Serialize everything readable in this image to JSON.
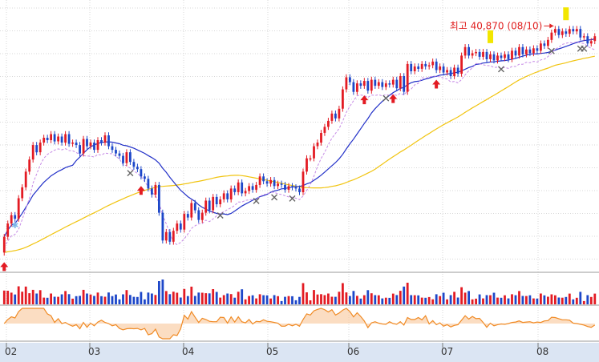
{
  "chart_data": {
    "type": "candlestick",
    "x_tick_labels": [
      "02",
      "03",
      "04",
      "05",
      "06",
      "07",
      "08"
    ],
    "high_annotation": {
      "label": "최고 40,870 (08/10)",
      "value": 40870
    },
    "ylim": [
      20500,
      42500
    ],
    "grid": true,
    "colors": {
      "up": "#e31b23",
      "down": "#1d47c9",
      "ma_short": "#2230c8",
      "ma_long": "#f1c40f",
      "ma_dashed": "#c68ae6",
      "oscillator": "#f08a24",
      "marker_up": "#e31b23",
      "marker_x": "#666666",
      "marker_yellow": "#f2e600",
      "axis_bg": "#dbe5f3"
    },
    "candles": [
      [
        22000,
        23300
      ],
      [
        23300,
        24400
      ],
      [
        24400,
        25100
      ],
      [
        25100,
        24800
      ],
      [
        24800,
        26500
      ],
      [
        26500,
        27400
      ],
      [
        27400,
        28700
      ],
      [
        28700,
        29700
      ],
      [
        29700,
        30900
      ],
      [
        30900,
        30300
      ],
      [
        30300,
        31100
      ],
      [
        31100,
        31500
      ],
      [
        31500,
        31300
      ],
      [
        31300,
        31800
      ],
      [
        31800,
        31200
      ],
      [
        31200,
        31600
      ],
      [
        31600,
        31100
      ],
      [
        31100,
        31800
      ],
      [
        31800,
        31000
      ],
      [
        31000,
        31100
      ],
      [
        31100,
        30900
      ],
      [
        30900,
        30200
      ],
      [
        30200,
        31400
      ],
      [
        31400,
        30800
      ],
      [
        30800,
        31100
      ],
      [
        31100,
        30500
      ],
      [
        30500,
        31300
      ],
      [
        31300,
        31100
      ],
      [
        31100,
        31700
      ],
      [
        31700,
        30800
      ],
      [
        30800,
        30500
      ],
      [
        30500,
        30200
      ],
      [
        30200,
        30000
      ],
      [
        30000,
        29400
      ],
      [
        29400,
        30300
      ],
      [
        30300,
        29500
      ],
      [
        29500,
        29100
      ],
      [
        29100,
        28900
      ],
      [
        28900,
        28300
      ],
      [
        28300,
        28100
      ],
      [
        28100,
        27300
      ],
      [
        27300,
        26800
      ],
      [
        26800,
        27600
      ],
      [
        27600,
        25300
      ],
      [
        25300,
        23000
      ],
      [
        23000,
        23700
      ],
      [
        23700,
        22900
      ],
      [
        22900,
        23800
      ],
      [
        23800,
        24400
      ],
      [
        24400,
        23900
      ],
      [
        23900,
        25200
      ],
      [
        25200,
        24900
      ],
      [
        24900,
        26100
      ],
      [
        26100,
        25500
      ],
      [
        25500,
        24700
      ],
      [
        24700,
        25300
      ],
      [
        25300,
        26300
      ],
      [
        26300,
        25500
      ],
      [
        25500,
        26600
      ],
      [
        26600,
        26000
      ],
      [
        26000,
        26400
      ],
      [
        26400,
        26900
      ],
      [
        26900,
        26400
      ],
      [
        26400,
        27300
      ],
      [
        27300,
        27000
      ],
      [
        27000,
        27800
      ],
      [
        27800,
        26900
      ],
      [
        26900,
        27100
      ],
      [
        27100,
        27500
      ],
      [
        27500,
        27200
      ],
      [
        27200,
        27600
      ],
      [
        27600,
        28300
      ],
      [
        28300,
        27900
      ],
      [
        27900,
        27700
      ],
      [
        27700,
        28000
      ],
      [
        28000,
        27500
      ],
      [
        27500,
        27700
      ],
      [
        27700,
        27600
      ],
      [
        27600,
        27200
      ],
      [
        27200,
        27500
      ],
      [
        27500,
        27400
      ],
      [
        27400,
        27300
      ],
      [
        27300,
        27000
      ],
      [
        27000,
        28700
      ],
      [
        28700,
        29800
      ],
      [
        29800,
        29800
      ],
      [
        29800,
        30800
      ],
      [
        30800,
        31100
      ],
      [
        31100,
        31900
      ],
      [
        31900,
        32400
      ],
      [
        32400,
        32900
      ],
      [
        32900,
        33500
      ],
      [
        33500,
        33100
      ],
      [
        33100,
        33900
      ],
      [
        33900,
        35500
      ],
      [
        35500,
        36500
      ],
      [
        36500,
        36100
      ],
      [
        36100,
        35300
      ],
      [
        35300,
        36000
      ],
      [
        36000,
        35800
      ],
      [
        35800,
        36200
      ],
      [
        36200,
        35400
      ],
      [
        35400,
        36300
      ],
      [
        36300,
        35800
      ],
      [
        35800,
        36100
      ],
      [
        36100,
        35700
      ],
      [
        35700,
        36000
      ],
      [
        36000,
        35900
      ],
      [
        35900,
        36300
      ],
      [
        36300,
        35600
      ],
      [
        35600,
        36600
      ],
      [
        36600,
        35300
      ],
      [
        35300,
        37600
      ],
      [
        37600,
        37000
      ],
      [
        37000,
        37400
      ],
      [
        37400,
        37200
      ],
      [
        37200,
        37600
      ],
      [
        37600,
        37400
      ],
      [
        37400,
        37500
      ],
      [
        37500,
        37800
      ],
      [
        37800,
        37100
      ],
      [
        37100,
        37400
      ],
      [
        37400,
        36900
      ],
      [
        36900,
        37100
      ],
      [
        37100,
        36600
      ],
      [
        36600,
        37300
      ],
      [
        37300,
        36800
      ],
      [
        36800,
        38300
      ],
      [
        38300,
        39000
      ],
      [
        39000,
        38300
      ],
      [
        38300,
        38500
      ],
      [
        38500,
        38600
      ],
      [
        38600,
        38200
      ],
      [
        38200,
        38600
      ],
      [
        38600,
        38000
      ],
      [
        38000,
        38400
      ],
      [
        38400,
        37900
      ],
      [
        37900,
        38300
      ],
      [
        38300,
        38100
      ],
      [
        38100,
        38400
      ],
      [
        38400,
        38000
      ],
      [
        38000,
        38700
      ],
      [
        38700,
        38300
      ],
      [
        38300,
        39000
      ],
      [
        39000,
        38400
      ],
      [
        38400,
        38800
      ],
      [
        38800,
        38500
      ],
      [
        38500,
        38900
      ],
      [
        38900,
        38700
      ],
      [
        38700,
        39300
      ],
      [
        39300,
        39100
      ],
      [
        39100,
        39600
      ],
      [
        39600,
        40200
      ],
      [
        40200,
        40500
      ],
      [
        40500,
        40000
      ],
      [
        40000,
        40300
      ],
      [
        40300,
        40100
      ],
      [
        40100,
        40500
      ],
      [
        40500,
        40300
      ],
      [
        40300,
        40500
      ],
      [
        40500,
        39800
      ],
      [
        39800,
        39900
      ],
      [
        39900,
        39300
      ],
      [
        39300,
        39500
      ],
      [
        39500,
        39900
      ]
    ],
    "up_markers": [
      0,
      38,
      100,
      108,
      120
    ],
    "x_markers": [
      35,
      60,
      70,
      75,
      80,
      106,
      138,
      152,
      160,
      161,
      173,
      180
    ],
    "yellow_markers": [
      135,
      156
    ],
    "star_marker": 3
  }
}
